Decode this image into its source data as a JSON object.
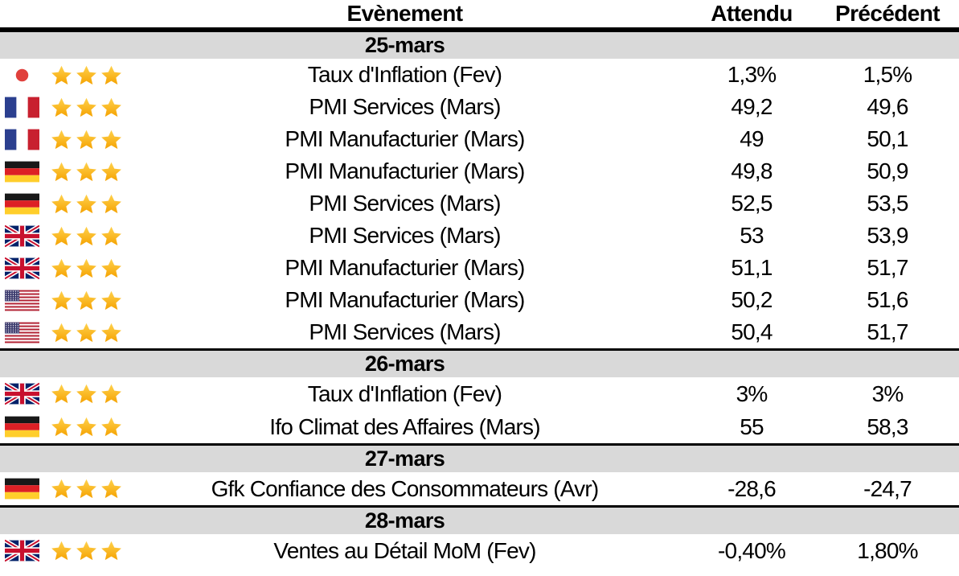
{
  "table": {
    "headers": {
      "event": "Evènement",
      "expected": "Attendu",
      "previous": "Précédent"
    },
    "sections": [
      {
        "date": "25-mars",
        "rows": [
          {
            "country": "japan",
            "stars": 3,
            "event": "Taux d'Inflation (Fev)",
            "expected": "1,3%",
            "previous": "1,5%"
          },
          {
            "country": "france",
            "stars": 3,
            "event": "PMI Services (Mars)",
            "expected": "49,2",
            "previous": "49,6"
          },
          {
            "country": "france",
            "stars": 3,
            "event": "PMI Manufacturier (Mars)",
            "expected": "49",
            "previous": "50,1"
          },
          {
            "country": "germany",
            "stars": 3,
            "event": "PMI Manufacturier (Mars)",
            "expected": "49,8",
            "previous": "50,9"
          },
          {
            "country": "germany",
            "stars": 3,
            "event": "PMI Services (Mars)",
            "expected": "52,5",
            "previous": "53,5"
          },
          {
            "country": "uk",
            "stars": 3,
            "event": "PMI Services (Mars)",
            "expected": "53",
            "previous": "53,9"
          },
          {
            "country": "uk",
            "stars": 3,
            "event": "PMI Manufacturier (Mars)",
            "expected": "51,1",
            "previous": "51,7"
          },
          {
            "country": "usa",
            "stars": 3,
            "event": "PMI Manufacturier (Mars)",
            "expected": "50,2",
            "previous": "51,6"
          },
          {
            "country": "usa",
            "stars": 3,
            "event": "PMI Services (Mars)",
            "expected": "50,4",
            "previous": "51,7"
          }
        ]
      },
      {
        "date": "26-mars",
        "rows": [
          {
            "country": "uk",
            "stars": 3,
            "event": "Taux d'Inflation (Fev)",
            "expected": "3%",
            "previous": "3%"
          },
          {
            "country": "germany",
            "stars": 3,
            "event": "Ifo Climat des Affaires (Mars)",
            "expected": "55",
            "previous": "58,3"
          }
        ]
      },
      {
        "date": "27-mars",
        "rows": [
          {
            "country": "germany",
            "stars": 3,
            "event": "Gfk Confiance des Consommateurs (Avr)",
            "expected": "-28,6",
            "previous": "-24,7"
          }
        ]
      },
      {
        "date": "28-mars",
        "rows": [
          {
            "country": "uk",
            "stars": 3,
            "event": "Ventes au Détail MoM (Fev)",
            "expected": "-0,40%",
            "previous": "1,80%"
          }
        ]
      }
    ]
  },
  "icons": {
    "star": "star-icon",
    "flags": [
      "japan",
      "france",
      "germany",
      "uk",
      "usa"
    ]
  },
  "colors": {
    "section_band_gray": "#d9d9d9",
    "rule_black": "#000000",
    "star_gold_top": "#ffd24d",
    "star_gold_bottom": "#f5a302",
    "flag_japan_red": "#e0403c",
    "flag_france_blue": "#2b3f8f",
    "flag_france_red": "#c8202f",
    "flag_germany_black": "#181818",
    "flag_germany_red": "#dd2025",
    "flag_germany_gold": "#ffce2b",
    "flag_uk_blue": "#012169",
    "flag_uk_red": "#c8102e",
    "flag_usa_red": "#b22234",
    "flag_usa_blue": "#3c3b6e"
  }
}
